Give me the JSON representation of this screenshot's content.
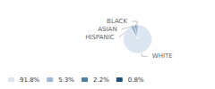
{
  "chart_data": {
    "type": "pie",
    "categories": [
      "WHITE",
      "HISPANIC",
      "ASIAN",
      "BLACK"
    ],
    "values": [
      91.8,
      5.3,
      2.2,
      0.8
    ],
    "value_labels": [
      "91.8%",
      "5.3%",
      "2.2%",
      "0.8%"
    ],
    "colors": [
      "#dce6f0",
      "#9eb9d4",
      "#4f7fa3",
      "#1f4e79"
    ],
    "legend": "bottom left"
  }
}
